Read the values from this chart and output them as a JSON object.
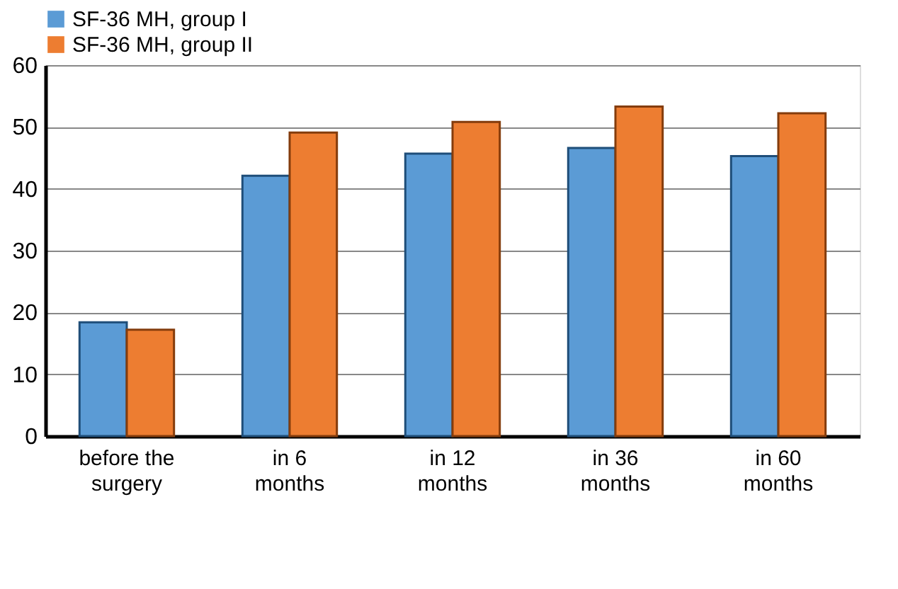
{
  "chart_data": {
    "type": "bar",
    "categories": [
      "before the surgery",
      "in 6 months",
      "in 12 months",
      "in 36 months",
      "in 60 months"
    ],
    "series": [
      {
        "name": "SF-36 MH, group I",
        "color": "#5b9bd5",
        "values": [
          18.4,
          42.1,
          45.7,
          46.6,
          45.3
        ]
      },
      {
        "name": "SF-36 MH, group II",
        "color": "#ed7d31",
        "values": [
          17.2,
          49.1,
          50.8,
          53.3,
          52.2
        ]
      }
    ],
    "ylim": [
      0,
      60
    ],
    "yticks": [
      0,
      10,
      20,
      30,
      40,
      50,
      60
    ],
    "grid": "y",
    "legend": "top"
  }
}
